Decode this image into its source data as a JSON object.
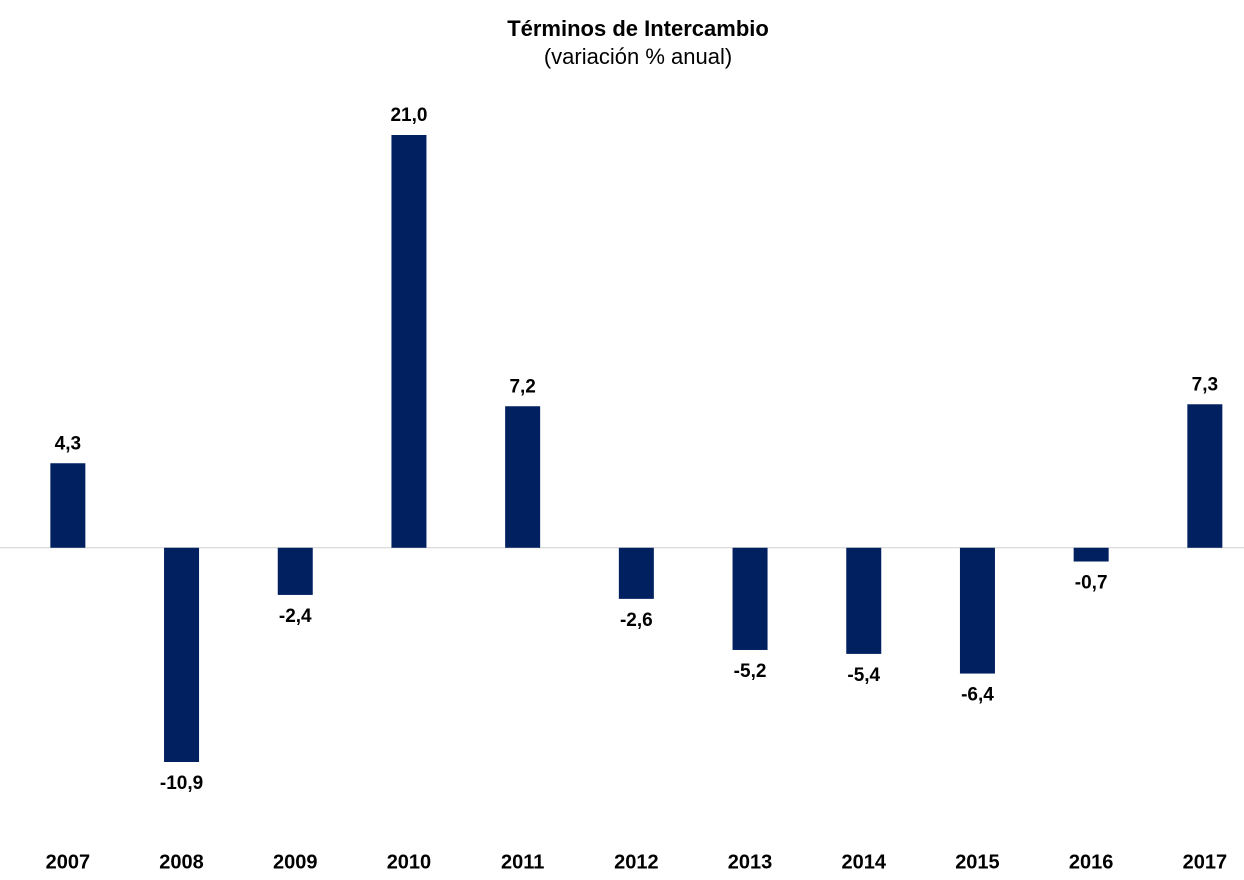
{
  "chart_data": {
    "type": "bar",
    "title": "Términos de Intercambio",
    "subtitle": "(variación % anual)",
    "categories": [
      "2007",
      "2008",
      "2009",
      "2010",
      "2011",
      "2012",
      "2013",
      "2014",
      "2015",
      "2016",
      "2017"
    ],
    "values": [
      4.3,
      -10.9,
      -2.4,
      21.0,
      7.2,
      -2.6,
      -5.2,
      -5.4,
      -6.4,
      -0.7,
      7.3
    ],
    "value_labels": [
      "4,3",
      "-10,9",
      "-2,4",
      "21,0",
      "7,2",
      "-2,6",
      "-5,2",
      "-5,4",
      "-6,4",
      "-0,7",
      "7,3"
    ],
    "color": "#002060",
    "grid": false
  }
}
